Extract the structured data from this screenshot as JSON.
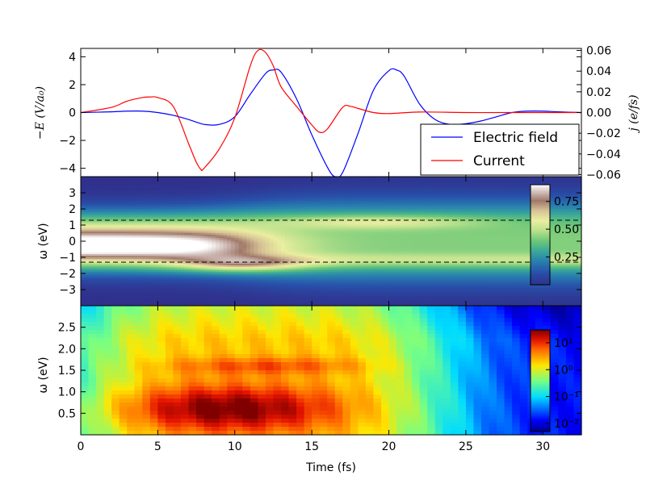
{
  "chart_data": [
    {
      "type": "line",
      "xlabel": "",
      "ylabel_left": "−E (V/a₀)",
      "ylabel_right": "j (e/fs)",
      "xlim": [
        0,
        32.5
      ],
      "ylim_left": [
        -4.6,
        4.6
      ],
      "ylim_right": [
        -0.062,
        0.062
      ],
      "yticks_left": [
        "4",
        "2",
        "0",
        "−2",
        "−4"
      ],
      "yticks_right": [
        "0.06",
        "0.04",
        "0.02",
        "0.00",
        "−0.02",
        "−0.04",
        "−0.06"
      ],
      "legend": {
        "position": "lower-right",
        "entries": [
          "Electric field",
          "Current"
        ]
      },
      "series": [
        {
          "name": "Electric field",
          "axis": "left",
          "color": "#0000ff",
          "x": [
            0,
            2,
            3,
            4,
            5,
            6,
            7,
            8,
            9,
            10,
            11,
            12,
            12.5,
            13,
            14,
            15,
            16,
            16.5,
            17,
            18,
            19,
            20,
            20.5,
            21,
            22,
            23,
            24,
            25,
            26,
            27,
            28,
            29,
            30,
            31,
            32.5
          ],
          "y": [
            0,
            0.05,
            0.1,
            0.1,
            0,
            -0.2,
            -0.5,
            -0.85,
            -0.85,
            -0.3,
            1.3,
            2.8,
            3.05,
            2.9,
            1.0,
            -1.6,
            -3.9,
            -4.6,
            -4.3,
            -1.5,
            1.6,
            3.0,
            3.05,
            2.6,
            0.6,
            -0.5,
            -0.85,
            -0.8,
            -0.6,
            -0.3,
            0,
            0.1,
            0.1,
            0.05,
            0
          ]
        },
        {
          "name": "Current",
          "axis": "right",
          "color": "#ff0000",
          "x": [
            0,
            2,
            3,
            4,
            4.5,
            5,
            6,
            7,
            7.5,
            7.8,
            8,
            9,
            10,
            11,
            11.5,
            12,
            12.5,
            13,
            14,
            15,
            15.5,
            16,
            17,
            17.5,
            18,
            19,
            20,
            22,
            25,
            28,
            32.5
          ],
          "y": [
            0,
            0.005,
            0.011,
            0.0145,
            0.015,
            0.0145,
            0.006,
            -0.03,
            -0.048,
            -0.055,
            -0.054,
            -0.035,
            -0.005,
            0.045,
            0.06,
            0.058,
            0.045,
            0.025,
            0.006,
            -0.012,
            -0.019,
            -0.016,
            0.005,
            0.006,
            0.004,
            0.0,
            -0.001,
            0.0005,
            0.0,
            0.0,
            0.0
          ]
        }
      ]
    },
    {
      "type": "heatmap",
      "xlabel": "",
      "ylabel": "ω (eV)",
      "xlim": [
        0,
        32.5
      ],
      "ylim": [
        -4,
        4
      ],
      "yticks": [
        "3",
        "2",
        "1",
        "0",
        "−1",
        "−2",
        "−3"
      ],
      "colormap": "gist_earth",
      "colorbar": {
        "range": [
          0,
          0.9
        ],
        "ticks": [
          "0.75",
          "0.50",
          "0.25"
        ]
      },
      "dashed_lines_y": [
        1.3,
        -1.3
      ]
    },
    {
      "type": "heatmap",
      "xlabel": "Time (fs)",
      "ylabel": "ω (eV)",
      "xlim": [
        0,
        32.5
      ],
      "ylim": [
        0,
        3.0
      ],
      "xticks": [
        "0",
        "5",
        "10",
        "15",
        "20",
        "25",
        "30"
      ],
      "yticks": [
        "2.5",
        "2.0",
        "1.5",
        "1.0",
        "0.5"
      ],
      "colormap": "jet (log scale)",
      "colorbar": {
        "scale": "log",
        "range": [
          0.005,
          30
        ],
        "ticks": [
          "10¹",
          "10⁰",
          "10⁻¹",
          "10⁻²"
        ]
      }
    }
  ]
}
